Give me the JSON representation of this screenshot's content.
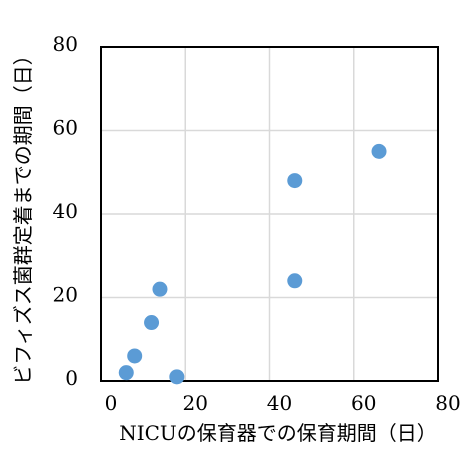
{
  "chart_data": {
    "type": "scatter",
    "title": "",
    "xlabel": "NICUの保育器での保育期間（日）",
    "ylabel": "ビフィズス菌群定着までの期間（日）",
    "xlim": [
      0,
      80
    ],
    "ylim": [
      0,
      80
    ],
    "x_ticks": [
      "0",
      "20",
      "40",
      "60",
      "80"
    ],
    "y_ticks": [
      "0",
      "20",
      "40",
      "60",
      "80"
    ],
    "grid": true,
    "legend": "none",
    "marker_color": "#5b9bd5",
    "points": [
      {
        "x": 6,
        "y": 2
      },
      {
        "x": 8,
        "y": 6
      },
      {
        "x": 12,
        "y": 14
      },
      {
        "x": 14,
        "y": 22
      },
      {
        "x": 18,
        "y": 1
      },
      {
        "x": 46,
        "y": 24
      },
      {
        "x": 46,
        "y": 48
      },
      {
        "x": 66,
        "y": 55
      }
    ]
  }
}
